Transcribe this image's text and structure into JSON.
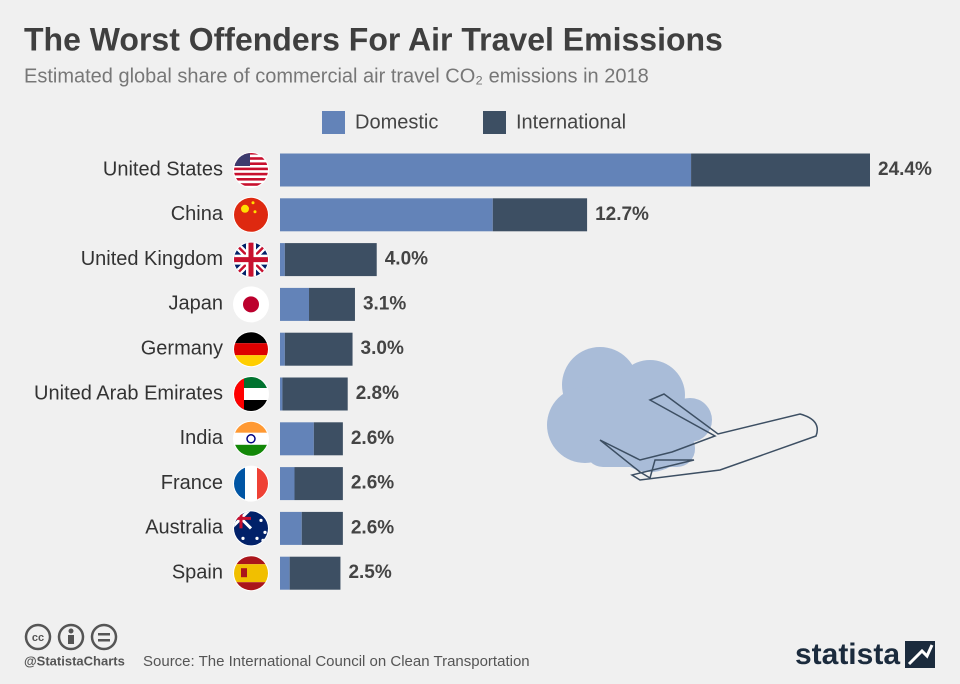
{
  "chart_data": {
    "type": "stacked-bar-horizontal",
    "title": "The Worst Offenders For Air Travel Emissions",
    "subtitle": "Estimated global share of commercial air travel CO₂ emissions in 2018",
    "categories": [
      "United States",
      "China",
      "United Kingdom",
      "Japan",
      "Germany",
      "United Arab Emirates",
      "India",
      "France",
      "Australia",
      "Spain"
    ],
    "series": [
      {
        "name": "Domestic",
        "color": "#6383b8",
        "values": [
          17.0,
          8.8,
          0.2,
          1.2,
          0.2,
          0.1,
          1.4,
          0.6,
          0.9,
          0.4
        ]
      },
      {
        "name": "International",
        "color": "#3d4f63",
        "values": [
          7.4,
          3.9,
          3.8,
          1.9,
          2.8,
          2.7,
          1.2,
          2.0,
          1.7,
          2.1
        ]
      }
    ],
    "totals": {
      "values": [
        24.4,
        12.7,
        4.0,
        3.1,
        3.0,
        2.8,
        2.6,
        2.6,
        2.6,
        2.5
      ],
      "value_labels": [
        "24.4%",
        "12.7%",
        "4.0%",
        "3.1%",
        "3.0%",
        "2.8%",
        "2.6%",
        "2.6%",
        "2.6%",
        "2.5%"
      ]
    },
    "xlim": [
      0,
      24.4
    ],
    "footer": {
      "handle": "@StatistaCharts",
      "source": "Source: The International Council on Clean Transportation",
      "brand": "statista"
    }
  }
}
